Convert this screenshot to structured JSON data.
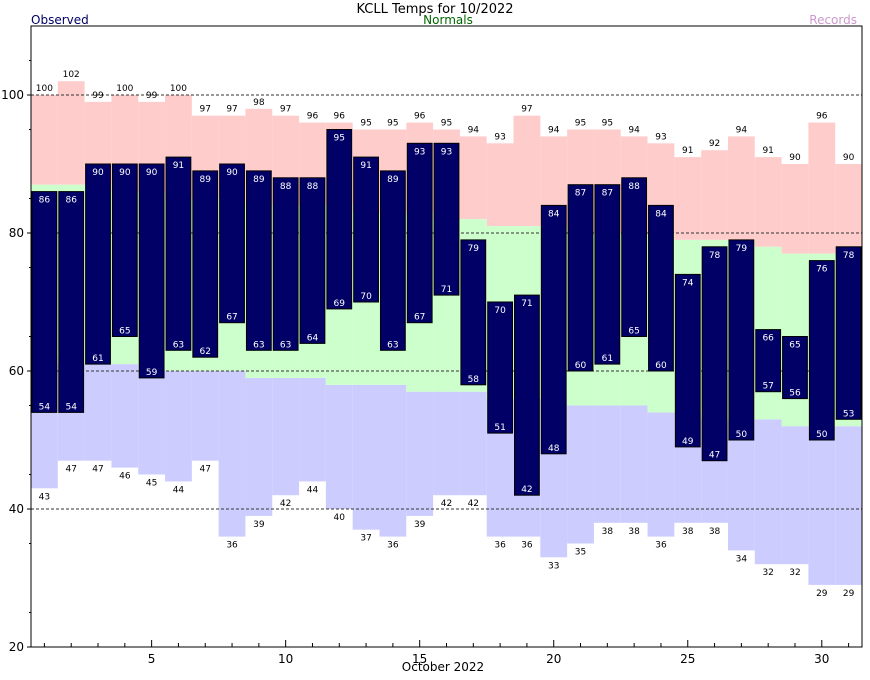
{
  "chart_data": {
    "type": "bar",
    "title": "KCLL Temps for 10/2022",
    "xlabel": "October 2022",
    "ylabel": "",
    "legend": {
      "observed": "Observed",
      "normals": "Normals",
      "records": "Records"
    },
    "colors": {
      "observed": "#000066",
      "observed_label": "#000066",
      "normals": "#ccffcc",
      "normals_label": "#006600",
      "record_high": "#ffcccc",
      "record_low": "#ccccff",
      "records_label": "#cc99cc",
      "bar_label": "#ffffff"
    },
    "ylim": [
      20,
      110
    ],
    "yticks": [
      20,
      40,
      60,
      80,
      100
    ],
    "dashed_gridlines": [
      40,
      60,
      80,
      100
    ],
    "xlim": [
      0.5,
      31.5
    ],
    "xticks": [
      5,
      10,
      15,
      20,
      25,
      30
    ],
    "days": [
      1,
      2,
      3,
      4,
      5,
      6,
      7,
      8,
      9,
      10,
      11,
      12,
      13,
      14,
      15,
      16,
      17,
      18,
      19,
      20,
      21,
      22,
      23,
      24,
      25,
      26,
      27,
      28,
      29,
      30,
      31
    ],
    "series": [
      {
        "name": "Records",
        "key": "record_high",
        "values": [
          100,
          102,
          99,
          100,
          99,
          100,
          97,
          97,
          98,
          97,
          96,
          96,
          95,
          95,
          96,
          95,
          94,
          93,
          97,
          94,
          95,
          95,
          94,
          93,
          91,
          92,
          94,
          91,
          90,
          96,
          90
        ]
      },
      {
        "name": "Records",
        "key": "record_low",
        "values": [
          43,
          47,
          47,
          46,
          45,
          44,
          47,
          36,
          39,
          42,
          44,
          40,
          37,
          36,
          39,
          42,
          42,
          36,
          36,
          33,
          35,
          38,
          38,
          36,
          38,
          38,
          34,
          32,
          32,
          29,
          29
        ]
      },
      {
        "name": "Normals",
        "key": "normal_high",
        "values": [
          87,
          87,
          87,
          86,
          86,
          85,
          85,
          85,
          84,
          84,
          84,
          84,
          83,
          83,
          83,
          82,
          82,
          81,
          81,
          81,
          80,
          80,
          80,
          80,
          79,
          79,
          79,
          78,
          77,
          77,
          77
        ]
      },
      {
        "name": "Normals",
        "key": "normal_low",
        "values": [
          62,
          61,
          61,
          61,
          60,
          60,
          60,
          60,
          59,
          59,
          59,
          58,
          58,
          58,
          57,
          57,
          57,
          56,
          56,
          56,
          55,
          55,
          55,
          54,
          54,
          53,
          53,
          53,
          52,
          52,
          52
        ]
      },
      {
        "name": "Observed",
        "key": "obs_high",
        "values": [
          86,
          86,
          90,
          90,
          90,
          91,
          89,
          90,
          89,
          88,
          88,
          95,
          91,
          89,
          93,
          93,
          79,
          70,
          71,
          84,
          87,
          87,
          88,
          84,
          74,
          78,
          79,
          66,
          65,
          76,
          78
        ]
      },
      {
        "name": "Observed",
        "key": "obs_low",
        "values": [
          54,
          54,
          61,
          65,
          59,
          63,
          62,
          67,
          63,
          63,
          64,
          69,
          70,
          63,
          67,
          71,
          58,
          51,
          42,
          48,
          60,
          61,
          65,
          60,
          49,
          47,
          50,
          57,
          56,
          50,
          53
        ]
      }
    ]
  }
}
